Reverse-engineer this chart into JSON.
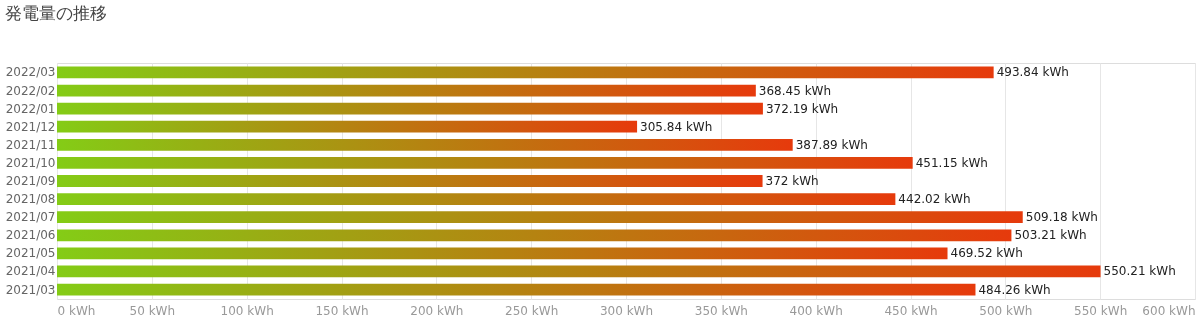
{
  "chart_data": {
    "type": "bar",
    "orientation": "horizontal",
    "title": "発電量の推移",
    "categories": [
      "2022/03",
      "2022/02",
      "2022/01",
      "2021/12",
      "2021/11",
      "2021/10",
      "2021/09",
      "2021/08",
      "2021/07",
      "2021/06",
      "2021/05",
      "2021/04",
      "2021/03"
    ],
    "series": [
      {
        "color": [
          "#84cc16",
          "#e63a0c"
        ],
        "values": [
          493.84,
          368.45,
          372.19,
          305.84,
          387.89,
          451.15,
          372,
          442.02,
          509.18,
          503.21,
          469.52,
          550.21,
          484.26
        ],
        "value_labels": [
          "493.84 kWh",
          "368.45 kWh",
          "372.19 kWh",
          "305.84 kWh",
          "387.89 kWh",
          "451.15 kWh",
          "372 kWh",
          "442.02 kWh",
          "509.18 kWh",
          "503.21 kWh",
          "469.52 kWh",
          "550.21 kWh",
          "484.26 kWh"
        ]
      }
    ],
    "xlim": [
      0,
      600
    ],
    "xticks": [
      {
        "value": 0,
        "label": "0 kWh"
      },
      {
        "value": 50,
        "label": "50 kWh"
      },
      {
        "value": 100,
        "label": "100 kWh"
      },
      {
        "value": 150,
        "label": "150 kWh"
      },
      {
        "value": 200,
        "label": "200 kWh"
      },
      {
        "value": 250,
        "label": "250 kWh"
      },
      {
        "value": 300,
        "label": "300 kWh"
      },
      {
        "value": 350,
        "label": "350 kWh"
      },
      {
        "value": 400,
        "label": "400 kWh"
      },
      {
        "value": 450,
        "label": "450 kWh"
      },
      {
        "value": 500,
        "label": "500 kWh"
      },
      {
        "value": 550,
        "label": "550 kWh"
      },
      {
        "value": 600,
        "label": "600 kWh"
      }
    ],
    "grid": "x"
  }
}
